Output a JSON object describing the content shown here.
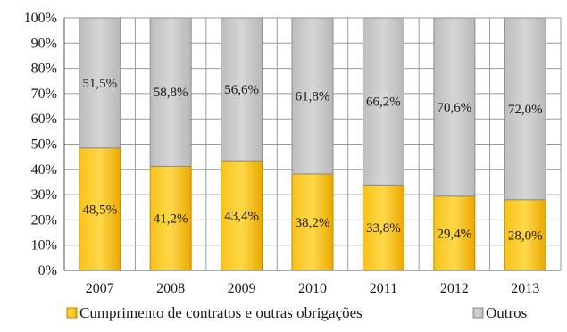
{
  "chart_data": {
    "type": "bar",
    "stacked": true,
    "percent": true,
    "categories": [
      "2007",
      "2008",
      "2009",
      "2010",
      "2011",
      "2012",
      "2013"
    ],
    "series": [
      {
        "name": "Cumprimento de contratos e outras obrigações",
        "values": [
          48.5,
          41.2,
          43.4,
          38.2,
          33.8,
          29.4,
          28.0
        ],
        "labels": [
          "48,5%",
          "41,2%",
          "43,4%",
          "38,2%",
          "33,8%",
          "29,4%",
          "28,0%"
        ],
        "color": "#f5b800"
      },
      {
        "name": "Outros",
        "values": [
          51.5,
          58.8,
          56.6,
          61.8,
          66.2,
          70.6,
          72.0
        ],
        "labels": [
          "51,5%",
          "58,8%",
          "56,6%",
          "61,8%",
          "66,2%",
          "70,6%",
          "72,0%"
        ],
        "color": "#c8c8c8"
      }
    ],
    "y_ticks": [
      "0%",
      "10%",
      "20%",
      "30%",
      "40%",
      "50%",
      "60%",
      "70%",
      "80%",
      "90%",
      "100%"
    ],
    "ylim": [
      0,
      100
    ],
    "grid": true,
    "legend": "bottom"
  }
}
